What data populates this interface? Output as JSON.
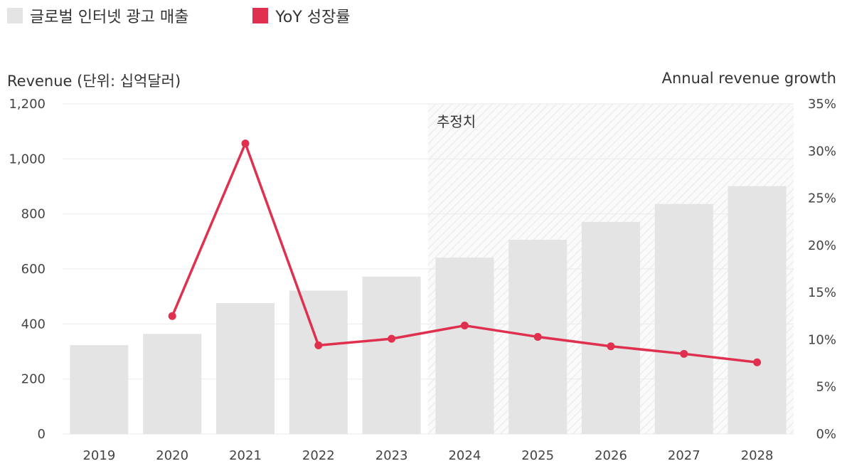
{
  "legend": {
    "revenue_label": "글로벌 인터넷 광고 매출",
    "growth_label": "YoY 성장률"
  },
  "colors": {
    "bar": "#e4e4e4",
    "line": "#e0304f",
    "grid": "#ebebeb",
    "forecast_hatch": "#ededed"
  },
  "chart_data": {
    "type": "bar",
    "categories": [
      "2019",
      "2020",
      "2021",
      "2022",
      "2023",
      "2024",
      "2025",
      "2026",
      "2027",
      "2028"
    ],
    "series": [
      {
        "name": "글로벌 인터넷 광고 매출",
        "type": "bar",
        "axis": "left",
        "values": [
          323,
          364,
          476,
          521,
          572,
          641,
          706,
          771,
          836,
          901
        ]
      },
      {
        "name": "YoY 성장률",
        "type": "line",
        "axis": "right",
        "values": [
          null,
          12.5,
          30.8,
          9.4,
          10.1,
          11.5,
          10.3,
          9.3,
          8.5,
          7.6
        ]
      }
    ],
    "ylabel": "Revenue (단위: 십억달러)",
    "y2label": "Annual revenue growth",
    "ylim": [
      0,
      1200
    ],
    "yticks": [
      "0",
      "200",
      "400",
      "600",
      "800",
      "1,000",
      "1,200"
    ],
    "yticks_values": [
      0,
      200,
      400,
      600,
      800,
      1000,
      1200
    ],
    "y2lim": [
      0,
      35
    ],
    "y2ticks": [
      "0%",
      "5%",
      "10%",
      "15%",
      "20%",
      "25%",
      "30%",
      "35%"
    ],
    "y2ticks_values": [
      0,
      5,
      10,
      15,
      20,
      25,
      30,
      35
    ],
    "forecast_label": "추정치",
    "forecast_start": "2024",
    "grid": true,
    "legend_position": "top-left"
  }
}
